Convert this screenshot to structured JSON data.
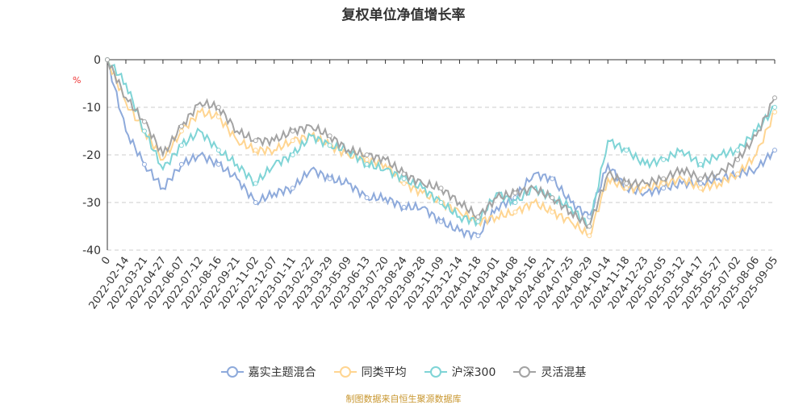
{
  "title": "复权单位净值增长率",
  "footer": "制图数据来自恒生聚源数据库",
  "chart_data": {
    "type": "line",
    "title": "复权单位净值增长率",
    "ylabel": "%",
    "ylim": [
      -40,
      0
    ],
    "yticks": [
      0,
      -10,
      -20,
      -30,
      -40
    ],
    "grid": true,
    "legend": "bottom",
    "categories": [
      "0",
      "2022-02-14",
      "2022-03-21",
      "2022-04-27",
      "2022-06-07",
      "2022-07-12",
      "2022-08-16",
      "2022-09-21",
      "2022-11-02",
      "2022-12-07",
      "2023-01-11",
      "2023-02-22",
      "2023-03-29",
      "2023-05-09",
      "2023-06-13",
      "2023-07-20",
      "2023-08-24",
      "2023-09-28",
      "2023-11-09",
      "2023-12-14",
      "2024-01-18",
      "2024-03-01",
      "2024-04-08",
      "2024-05-16",
      "2024-06-21",
      "2024-07-25",
      "2024-08-29",
      "2024-10-14",
      "2024-11-18",
      "2024-12-23",
      "2025-02-05",
      "2025-03-12",
      "2025-04-17",
      "2025-05-27",
      "2025-07-02",
      "2025-08-06",
      "2025-09-05"
    ],
    "series": [
      {
        "name": "嘉实主题混合",
        "color": "#8eaadb",
        "values": [
          0,
          -15,
          -22,
          -27,
          -22,
          -20,
          -22,
          -25,
          -30,
          -28,
          -27,
          -23,
          -25,
          -26,
          -29,
          -29,
          -31,
          -31,
          -34,
          -36,
          -37,
          -31,
          -29,
          -24,
          -25,
          -30,
          -33,
          -22,
          -27,
          -28,
          -27,
          -26,
          -26,
          -25,
          -24,
          -23,
          -19
        ]
      },
      {
        "name": "同类平均",
        "color": "#ffd591",
        "values": [
          0,
          -9,
          -15,
          -21,
          -15,
          -11,
          -12,
          -17,
          -19,
          -19,
          -17,
          -16,
          -18,
          -20,
          -21,
          -22,
          -26,
          -28,
          -30,
          -32,
          -34,
          -33,
          -32,
          -30,
          -32,
          -34,
          -37,
          -25,
          -27,
          -27,
          -26,
          -25,
          -27,
          -26,
          -24,
          -20,
          -11
        ]
      },
      {
        "name": "沪深300",
        "color": "#7fd4d6",
        "values": [
          0,
          -5,
          -15,
          -23,
          -18,
          -15,
          -19,
          -22,
          -26,
          -22,
          -20,
          -16,
          -18,
          -19,
          -22,
          -23,
          -25,
          -27,
          -30,
          -33,
          -34,
          -28,
          -30,
          -27,
          -29,
          -31,
          -35,
          -17,
          -19,
          -22,
          -21,
          -19,
          -22,
          -20,
          -19,
          -15,
          -10
        ]
      },
      {
        "name": "灵活混基",
        "color": "#a3a3a3",
        "values": [
          0,
          -8,
          -13,
          -20,
          -14,
          -9,
          -10,
          -15,
          -17,
          -17,
          -15,
          -14,
          -16,
          -19,
          -20,
          -21,
          -24,
          -26,
          -27,
          -30,
          -33,
          -29,
          -28,
          -27,
          -29,
          -32,
          -35,
          -24,
          -26,
          -26,
          -25,
          -23,
          -25,
          -24,
          -21,
          -16,
          -8
        ]
      }
    ]
  }
}
